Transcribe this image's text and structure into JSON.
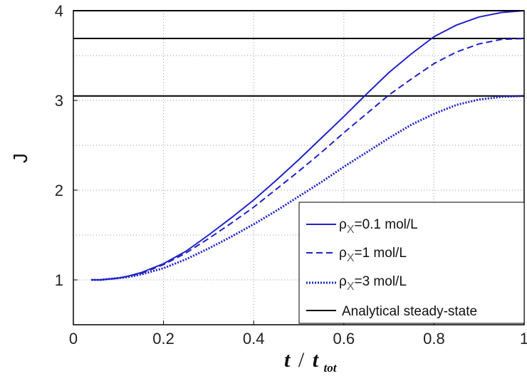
{
  "chart_data": {
    "type": "line",
    "title": "",
    "xlabel": {
      "main": "t",
      "sep": "/",
      "denom": "t",
      "denom_sub": "tot"
    },
    "ylabel": "J",
    "xlim": [
      0,
      1
    ],
    "ylim": [
      0.5,
      4
    ],
    "xticks": [
      0,
      0.2,
      0.4,
      0.6,
      0.8,
      1
    ],
    "xtick_labels": [
      "0",
      "0.2",
      "0.4",
      "0.6",
      "0.8",
      "1"
    ],
    "yticks": [
      1,
      2,
      3,
      4
    ],
    "ytick_labels": [
      "1",
      "2",
      "3",
      "4"
    ],
    "grid": true,
    "legend_position": "bottom-right",
    "series": [
      {
        "name_prefix": "ρ",
        "name_sub": "X",
        "name_suffix": "=0.1 mol/L",
        "style": "solid",
        "color": "#1f22c8",
        "x": [
          0.04,
          0.06,
          0.08,
          0.1,
          0.12,
          0.15,
          0.2,
          0.25,
          0.3,
          0.35,
          0.4,
          0.45,
          0.5,
          0.55,
          0.6,
          0.65,
          0.7,
          0.75,
          0.8,
          0.85,
          0.9,
          0.95,
          1.0
        ],
        "y": [
          1.0,
          1.0,
          1.01,
          1.02,
          1.04,
          1.08,
          1.18,
          1.32,
          1.5,
          1.69,
          1.89,
          2.11,
          2.34,
          2.58,
          2.82,
          3.07,
          3.31,
          3.52,
          3.71,
          3.84,
          3.93,
          3.98,
          4.0
        ]
      },
      {
        "name_prefix": "ρ",
        "name_sub": "X",
        "name_suffix": "=1 mol/L",
        "style": "dashed",
        "color": "#1f22c8",
        "x": [
          0.04,
          0.06,
          0.08,
          0.1,
          0.12,
          0.15,
          0.2,
          0.25,
          0.3,
          0.35,
          0.4,
          0.45,
          0.5,
          0.55,
          0.6,
          0.65,
          0.7,
          0.75,
          0.8,
          0.85,
          0.9,
          0.95,
          1.0
        ],
        "y": [
          1.0,
          1.0,
          1.01,
          1.02,
          1.04,
          1.07,
          1.17,
          1.3,
          1.46,
          1.63,
          1.81,
          2.01,
          2.21,
          2.42,
          2.64,
          2.85,
          3.06,
          3.24,
          3.41,
          3.54,
          3.63,
          3.68,
          3.69
        ]
      },
      {
        "name_prefix": "ρ",
        "name_sub": "X",
        "name_suffix": "=3 mol/L",
        "style": "dotted",
        "color": "#1f22c8",
        "x": [
          0.04,
          0.06,
          0.08,
          0.1,
          0.12,
          0.15,
          0.2,
          0.25,
          0.3,
          0.35,
          0.4,
          0.45,
          0.5,
          0.55,
          0.6,
          0.65,
          0.7,
          0.75,
          0.8,
          0.85,
          0.9,
          0.95,
          1.0
        ],
        "y": [
          1.0,
          1.0,
          1.01,
          1.02,
          1.03,
          1.06,
          1.13,
          1.23,
          1.35,
          1.48,
          1.62,
          1.77,
          1.93,
          2.09,
          2.26,
          2.42,
          2.58,
          2.73,
          2.85,
          2.95,
          3.01,
          3.04,
          3.05
        ]
      }
    ],
    "reference_lines": {
      "name": "Analytical steady-state",
      "color": "#000000",
      "y": [
        4.0,
        3.69,
        3.05
      ]
    }
  }
}
